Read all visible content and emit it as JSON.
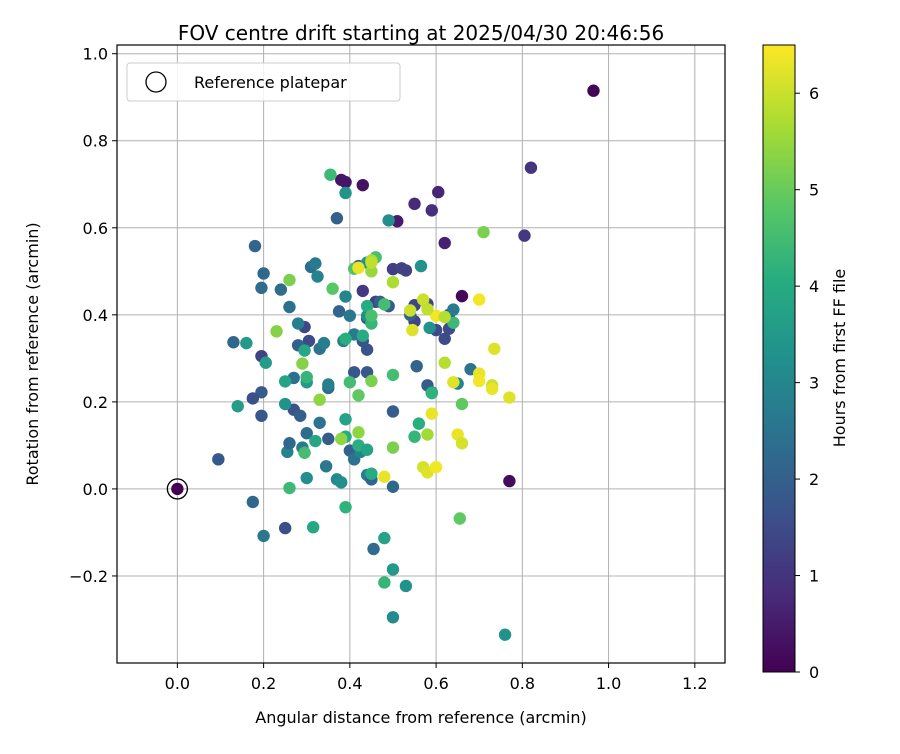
{
  "chart_data": {
    "type": "scatter",
    "title": "FOV centre drift starting at 2025/04/30 20:46:56",
    "xlabel": "Angular distance from reference (arcmin)",
    "ylabel": "Rotation from reference (arcmin)",
    "xlim": [
      -0.14,
      1.27
    ],
    "ylim": [
      -0.4,
      1.02
    ],
    "x_ticks": [
      0.0,
      0.2,
      0.4,
      0.6,
      0.8,
      1.0,
      1.2
    ],
    "x_tick_labels": [
      "0.0",
      "0.2",
      "0.4",
      "0.6",
      "0.8",
      "1.0",
      "1.2"
    ],
    "y_ticks": [
      -0.2,
      0.0,
      0.2,
      0.4,
      0.6,
      0.8,
      1.0
    ],
    "y_tick_labels": [
      "−0.2",
      "0.0",
      "0.2",
      "0.4",
      "0.6",
      "0.8",
      "1.0"
    ],
    "grid": true,
    "legend": {
      "placement": "top-left",
      "entries": [
        "Reference platepar"
      ]
    },
    "colorbar": {
      "label": "Hours from first FF file",
      "range": [
        0,
        6.5
      ],
      "ticks": [
        0,
        1,
        2,
        3,
        4,
        5,
        6
      ],
      "tick_labels": [
        "0",
        "1",
        "2",
        "3",
        "4",
        "5",
        "6"
      ],
      "colormap": "viridis"
    },
    "reference_point": {
      "x": 0.0,
      "y": 0.0,
      "label": "Reference platepar"
    },
    "points": [
      [
        0.0,
        0.0,
        0.0
      ],
      [
        0.965,
        0.915,
        0.05
      ],
      [
        0.66,
        0.443,
        0.15
      ],
      [
        0.77,
        0.018,
        0.2
      ],
      [
        0.43,
        0.698,
        0.3
      ],
      [
        0.38,
        0.71,
        0.35
      ],
      [
        0.39,
        0.705,
        0.4
      ],
      [
        0.51,
        0.615,
        0.5
      ],
      [
        0.62,
        0.565,
        0.6
      ],
      [
        0.605,
        0.682,
        0.7
      ],
      [
        0.55,
        0.655,
        0.8
      ],
      [
        0.59,
        0.64,
        0.9
      ],
      [
        0.82,
        0.738,
        1.0
      ],
      [
        0.805,
        0.582,
        1.1
      ],
      [
        0.43,
        0.455,
        1.1
      ],
      [
        0.46,
        0.43,
        1.2
      ],
      [
        0.5,
        0.505,
        1.2
      ],
      [
        0.52,
        0.507,
        1.3
      ],
      [
        0.53,
        0.502,
        1.3
      ],
      [
        0.55,
        0.422,
        1.4
      ],
      [
        0.55,
        0.385,
        1.4
      ],
      [
        0.58,
        0.425,
        1.4
      ],
      [
        0.6,
        0.365,
        1.5
      ],
      [
        0.62,
        0.345,
        1.5
      ],
      [
        0.63,
        0.368,
        1.5
      ],
      [
        0.63,
        0.4,
        1.6
      ],
      [
        0.44,
        0.392,
        1.6
      ],
      [
        0.43,
        0.34,
        1.7
      ],
      [
        0.44,
        0.32,
        1.7
      ],
      [
        0.41,
        0.268,
        1.8
      ],
      [
        0.44,
        0.268,
        1.8
      ],
      [
        0.5,
        0.178,
        1.9
      ],
      [
        0.58,
        0.238,
        1.9
      ],
      [
        0.49,
        0.42,
        1.9
      ],
      [
        0.54,
        0.4,
        2.0
      ],
      [
        0.47,
        0.43,
        2.0
      ],
      [
        0.42,
        0.512,
        2.0
      ],
      [
        0.555,
        0.282,
        2.1
      ],
      [
        0.295,
        0.372,
        1.4
      ],
      [
        0.305,
        0.34,
        1.5
      ],
      [
        0.24,
        0.458,
        2.3
      ],
      [
        0.2,
        0.495,
        2.2
      ],
      [
        0.18,
        0.558,
        2.1
      ],
      [
        0.195,
        0.462,
        2.3
      ],
      [
        0.195,
        0.305,
        1.3
      ],
      [
        0.195,
        0.222,
        1.9
      ],
      [
        0.175,
        0.208,
        1.6
      ],
      [
        0.195,
        0.168,
        1.8
      ],
      [
        0.095,
        0.068,
        1.8
      ],
      [
        0.13,
        0.337,
        2.2
      ],
      [
        0.175,
        -0.03,
        2.2
      ],
      [
        0.25,
        -0.09,
        1.6
      ],
      [
        0.2,
        -0.108,
        2.6
      ],
      [
        0.27,
        0.182,
        1.7
      ],
      [
        0.27,
        0.255,
        2.4
      ],
      [
        0.285,
        0.168,
        2.0
      ],
      [
        0.3,
        0.128,
        2.3
      ],
      [
        0.33,
        0.152,
        2.5
      ],
      [
        0.35,
        0.115,
        1.9
      ],
      [
        0.345,
        0.052,
        2.6
      ],
      [
        0.255,
        0.085,
        2.9
      ],
      [
        0.29,
        0.095,
        2.7
      ],
      [
        0.3,
        0.025,
        3.2
      ],
      [
        0.37,
        0.022,
        3.1
      ],
      [
        0.4,
        0.088,
        2.0
      ],
      [
        0.41,
        0.068,
        2.5
      ],
      [
        0.425,
        0.085,
        3.0
      ],
      [
        0.44,
        0.032,
        2.8
      ],
      [
        0.45,
        0.022,
        2.1
      ],
      [
        0.5,
        0.005,
        2.2
      ],
      [
        0.455,
        -0.138,
        2.3
      ],
      [
        0.48,
        -0.113,
        3.8
      ],
      [
        0.5,
        -0.185,
        3.5
      ],
      [
        0.53,
        -0.223,
        3.3
      ],
      [
        0.48,
        -0.215,
        4.3
      ],
      [
        0.5,
        -0.295,
        3.1
      ],
      [
        0.76,
        -0.335,
        3.3
      ],
      [
        0.26,
        0.105,
        2.2
      ],
      [
        0.26,
        0.418,
        2.4
      ],
      [
        0.28,
        0.38,
        2.8
      ],
      [
        0.28,
        0.33,
        2.0
      ],
      [
        0.31,
        0.51,
        2.3
      ],
      [
        0.32,
        0.518,
        2.7
      ],
      [
        0.325,
        0.488,
        2.9
      ],
      [
        0.33,
        0.322,
        2.5
      ],
      [
        0.34,
        0.335,
        2.8
      ],
      [
        0.35,
        0.232,
        2.3
      ],
      [
        0.35,
        0.24,
        2.8
      ],
      [
        0.37,
        0.622,
        2.0
      ],
      [
        0.375,
        0.408,
        2.1
      ],
      [
        0.385,
        0.34,
        2.8
      ],
      [
        0.39,
        0.442,
        3.0
      ],
      [
        0.4,
        0.398,
        2.6
      ],
      [
        0.41,
        0.355,
        2.7
      ],
      [
        0.44,
        0.398,
        3.2
      ],
      [
        0.44,
        0.52,
        3.3
      ],
      [
        0.39,
        0.68,
        3.4
      ],
      [
        0.49,
        0.617,
        3.2
      ],
      [
        0.565,
        0.512,
        3.3
      ],
      [
        0.585,
        0.37,
        3.3
      ],
      [
        0.59,
        0.222,
        3.1
      ],
      [
        0.65,
        0.242,
        3.0
      ],
      [
        0.64,
        0.412,
        2.7
      ],
      [
        0.68,
        0.275,
        2.5
      ],
      [
        0.16,
        0.335,
        3.5
      ],
      [
        0.14,
        0.19,
        3.6
      ],
      [
        0.205,
        0.29,
        3.6
      ],
      [
        0.25,
        0.195,
        3.3
      ],
      [
        0.25,
        0.247,
        3.8
      ],
      [
        0.3,
        0.245,
        3.5
      ],
      [
        0.32,
        0.11,
        3.9
      ],
      [
        0.39,
        0.12,
        4.0
      ],
      [
        0.39,
        0.16,
        3.8
      ],
      [
        0.38,
        0.015,
        3.2
      ],
      [
        0.42,
        0.1,
        4.1
      ],
      [
        0.44,
        0.09,
        3.8
      ],
      [
        0.45,
        0.035,
        4.0
      ],
      [
        0.26,
        0.002,
        4.4
      ],
      [
        0.315,
        -0.088,
        3.9
      ],
      [
        0.39,
        -0.042,
        4.2
      ],
      [
        0.295,
        0.318,
        3.9
      ],
      [
        0.295,
        0.083,
        4.5
      ],
      [
        0.3,
        0.257,
        4.3
      ],
      [
        0.355,
        0.722,
        4.4
      ],
      [
        0.36,
        0.46,
        4.8
      ],
      [
        0.39,
        0.345,
        4.1
      ],
      [
        0.4,
        0.245,
        4.5
      ],
      [
        0.41,
        0.506,
        4.7
      ],
      [
        0.42,
        0.215,
        4.9
      ],
      [
        0.43,
        0.352,
        4.0
      ],
      [
        0.44,
        0.42,
        4.0
      ],
      [
        0.45,
        0.38,
        4.3
      ],
      [
        0.45,
        0.398,
        4.6
      ],
      [
        0.46,
        0.532,
        4.6
      ],
      [
        0.48,
        0.424,
        4.5
      ],
      [
        0.5,
        0.095,
        5.2
      ],
      [
        0.5,
        0.262,
        4.5
      ],
      [
        0.55,
        0.12,
        4.3
      ],
      [
        0.56,
        0.15,
        4.1
      ],
      [
        0.58,
        0.125,
        5.6
      ],
      [
        0.59,
        0.22,
        4.2
      ],
      [
        0.64,
        0.382,
        4.4
      ],
      [
        0.66,
        0.195,
        4.9
      ],
      [
        0.655,
        -0.068,
        4.9
      ],
      [
        0.71,
        0.59,
        5.2
      ],
      [
        0.26,
        0.48,
        5.2
      ],
      [
        0.23,
        0.362,
        5.3
      ],
      [
        0.29,
        0.288,
        5.3
      ],
      [
        0.33,
        0.205,
        5.4
      ],
      [
        0.38,
        0.115,
        5.4
      ],
      [
        0.42,
        0.13,
        5.4
      ],
      [
        0.45,
        0.248,
        5.2
      ],
      [
        0.45,
        0.5,
        5.5
      ],
      [
        0.45,
        0.525,
        5.7
      ],
      [
        0.5,
        0.475,
        5.7
      ],
      [
        0.54,
        0.41,
        6.0
      ],
      [
        0.545,
        0.365,
        6.2
      ],
      [
        0.57,
        0.05,
        6.1
      ],
      [
        0.58,
        0.038,
        6.2
      ],
      [
        0.6,
        0.05,
        6.4
      ],
      [
        0.59,
        0.173,
        6.3
      ],
      [
        0.6,
        0.398,
        6.4
      ],
      [
        0.62,
        0.29,
        5.8
      ],
      [
        0.62,
        0.395,
        5.8
      ],
      [
        0.64,
        0.245,
        6.2
      ],
      [
        0.65,
        0.125,
        6.3
      ],
      [
        0.66,
        0.105,
        6.1
      ],
      [
        0.7,
        0.435,
        6.4
      ],
      [
        0.7,
        0.265,
        6.3
      ],
      [
        0.7,
        0.248,
        6.4
      ],
      [
        0.73,
        0.238,
        6.0
      ],
      [
        0.73,
        0.23,
        6.3
      ],
      [
        0.735,
        0.322,
        6.2
      ],
      [
        0.77,
        0.21,
        6.2
      ],
      [
        0.42,
        0.508,
        6.3
      ],
      [
        0.45,
        0.52,
        5.9
      ],
      [
        0.48,
        0.028,
        6.3
      ],
      [
        0.57,
        0.435,
        6.0
      ],
      [
        0.58,
        0.413,
        5.9
      ]
    ]
  }
}
